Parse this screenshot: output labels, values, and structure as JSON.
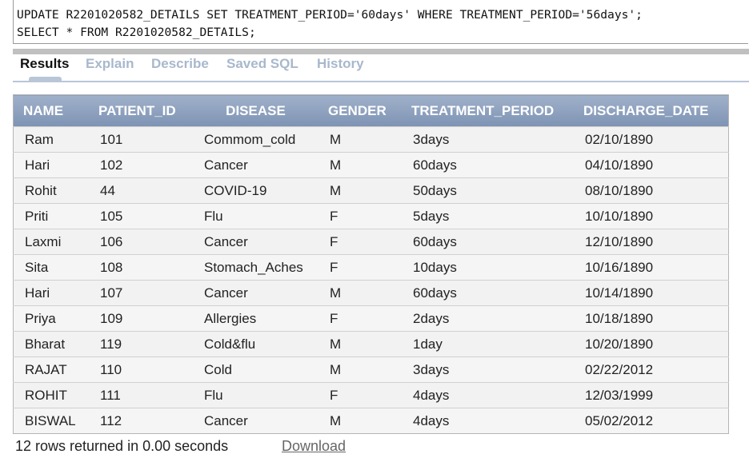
{
  "sql": {
    "line1": "UPDATE R2201020582_DETAILS SET TREATMENT_PERIOD='60days' WHERE TREATMENT_PERIOD='56days';",
    "line2": "SELECT * FROM R2201020582_DETAILS;"
  },
  "tabs": [
    "Results",
    "Explain",
    "Describe",
    "Saved SQL",
    "History"
  ],
  "table": {
    "columns": [
      "NAME",
      "PATIENT_ID",
      "DISEASE",
      "GENDER",
      "TREATMENT_PERIOD",
      "DISCHARGE_DATE"
    ],
    "rows": [
      [
        "Ram",
        "101",
        "Commom_cold",
        "M",
        "3days",
        "02/10/1890"
      ],
      [
        "Hari",
        "102",
        "Cancer",
        "M",
        "60days",
        "04/10/1890"
      ],
      [
        "Rohit",
        "44",
        "COVID-19",
        "M",
        "50days",
        "08/10/1890"
      ],
      [
        "Priti",
        "105",
        "Flu",
        "F",
        "5days",
        "10/10/1890"
      ],
      [
        "Laxmi",
        "106",
        "Cancer",
        "F",
        "60days",
        "12/10/1890"
      ],
      [
        "Sita",
        "108",
        "Stomach_Aches",
        "F",
        "10days",
        "10/16/1890"
      ],
      [
        "Hari",
        "107",
        "Cancer",
        "M",
        "60days",
        "10/14/1890"
      ],
      [
        "Priya",
        "109",
        "Allergies",
        "F",
        "2days",
        "10/18/1890"
      ],
      [
        "Bharat",
        "119",
        "Cold&flu",
        "M",
        "1day",
        "10/20/1890"
      ],
      [
        "RAJAT",
        "110",
        "Cold",
        "M",
        "3days",
        "02/22/2012"
      ],
      [
        "ROHIT",
        "111",
        "Flu",
        "F",
        "4days",
        "12/03/1999"
      ],
      [
        "BISWAL",
        "112",
        "Cancer",
        "M",
        "4days",
        "05/02/2012"
      ]
    ]
  },
  "footer": {
    "status": "12 rows returned in 0.00 seconds",
    "download": "Download"
  }
}
